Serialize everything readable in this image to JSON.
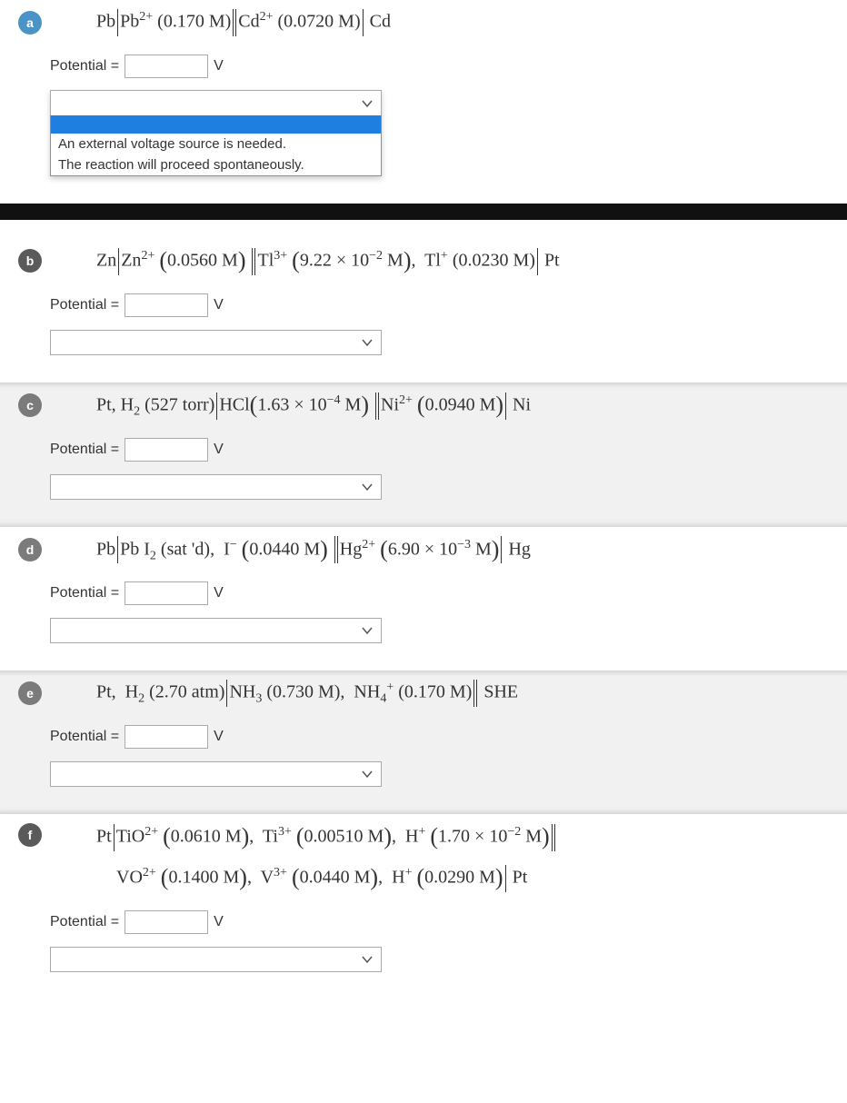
{
  "options": {
    "blank": "",
    "opt1": "An external voltage source is needed.",
    "opt2": "The reaction will proceed spontaneously."
  },
  "common": {
    "potential_label": "Potential =",
    "unit": "V"
  },
  "parts": {
    "a": {
      "label": "a",
      "badge_color": "#4a93c7",
      "equation_html": "Pb<span class='vbar'></span>Pb<span class='eq-sup'>2+</span> (0.170&nbsp;M)<span class='vbar dbl'></span>Cd<span class='eq-sup'>2+</span> (0.0720&nbsp;M)<span class='vbar'></span> Cd",
      "value": ""
    },
    "b": {
      "label": "b",
      "badge_color": "#5a5a5a",
      "equation_html": "Zn<span class='vbar'></span>Zn<span class='eq-sup'>2+</span> <span class='bigparen'>(</span>0.0560&nbsp;M<span class='bigparen'>)</span> <span class='vbar dbl'></span>Tl<span class='eq-sup'>3+</span> <span class='bigparen'>(</span>9.22 × 10<span class='eq-sup'>−2</span>&nbsp;M<span class='bigparen'>)</span>,&nbsp; Tl<span class='eq-sup'>+</span> (0.0230&nbsp;M)<span class='vbar'></span> Pt",
      "value": ""
    },
    "c": {
      "label": "c",
      "badge_color": "#7b7b7b",
      "equation_html": "Pt, H<span class='eq-sub'>2</span> (527&nbsp;torr)<span class='vbar'></span>HCl<span class='bigparen'>(</span>1.63 × 10<span class='eq-sup'>−4</span>&nbsp;M<span class='bigparen'>)</span> <span class='vbar dbl'></span>Ni<span class='eq-sup'>2+</span> <span class='bigparen'>(</span>0.0940&nbsp;M<span class='bigparen'>)</span><span class='vbar'></span> Ni",
      "value": ""
    },
    "d": {
      "label": "d",
      "badge_color": "#7b7b7b",
      "equation_html": "Pb<span class='vbar'></span>Pb I<span class='eq-sub'>2</span> (sat 'd),&nbsp; I<span class='eq-sup'>−</span> <span class='bigparen'>(</span>0.0440&nbsp;M<span class='bigparen'>)</span> <span class='vbar dbl'></span>Hg<span class='eq-sup'>2+</span> <span class='bigparen'>(</span>6.90 × 10<span class='eq-sup'>−3</span>&nbsp;M<span class='bigparen'>)</span><span class='vbar'></span> Hg",
      "value": ""
    },
    "e": {
      "label": "e",
      "badge_color": "#7b7b7b",
      "equation_html": "Pt,&nbsp; H<span class='eq-sub'>2</span> (2.70&nbsp;atm)<span class='vbar'></span>NH<span class='eq-sub'>3</span> (0.730&nbsp;M),&nbsp; NH<span class='eq-sub'>4</span><span class='eq-sup'>+</span> (0.170&nbsp;M)<span class='vbar dbl'></span> SHE",
      "value": ""
    },
    "f": {
      "label": "f",
      "badge_color": "#5a5a5a",
      "equation_line1_html": "Pt<span class='vbar'></span>TiO<span class='eq-sup'>2+</span> <span class='bigparen'>(</span>0.0610&nbsp;M<span class='bigparen'>)</span>,&nbsp; Ti<span class='eq-sup'>3+</span> <span class='bigparen'>(</span>0.00510&nbsp;M<span class='bigparen'>)</span>,&nbsp; H<span class='eq-sup'>+</span> <span class='bigparen'>(</span>1.70 × 10<span class='eq-sup'>−2</span>&nbsp;M<span class='bigparen'>)</span><span class='vbar dbl'></span>",
      "equation_line2_html": "VO<span class='eq-sup'>2+</span> <span class='bigparen'>(</span>0.1400&nbsp;M<span class='bigparen'>)</span>,&nbsp; V<span class='eq-sup'>3+</span> <span class='bigparen'>(</span>0.0440&nbsp;M<span class='bigparen'>)</span>,&nbsp; H<span class='eq-sup'>+</span> <span class='bigparen'>(</span>0.0290&nbsp;M<span class='bigparen'>)</span><span class='vbar'></span> Pt",
      "value": ""
    }
  }
}
